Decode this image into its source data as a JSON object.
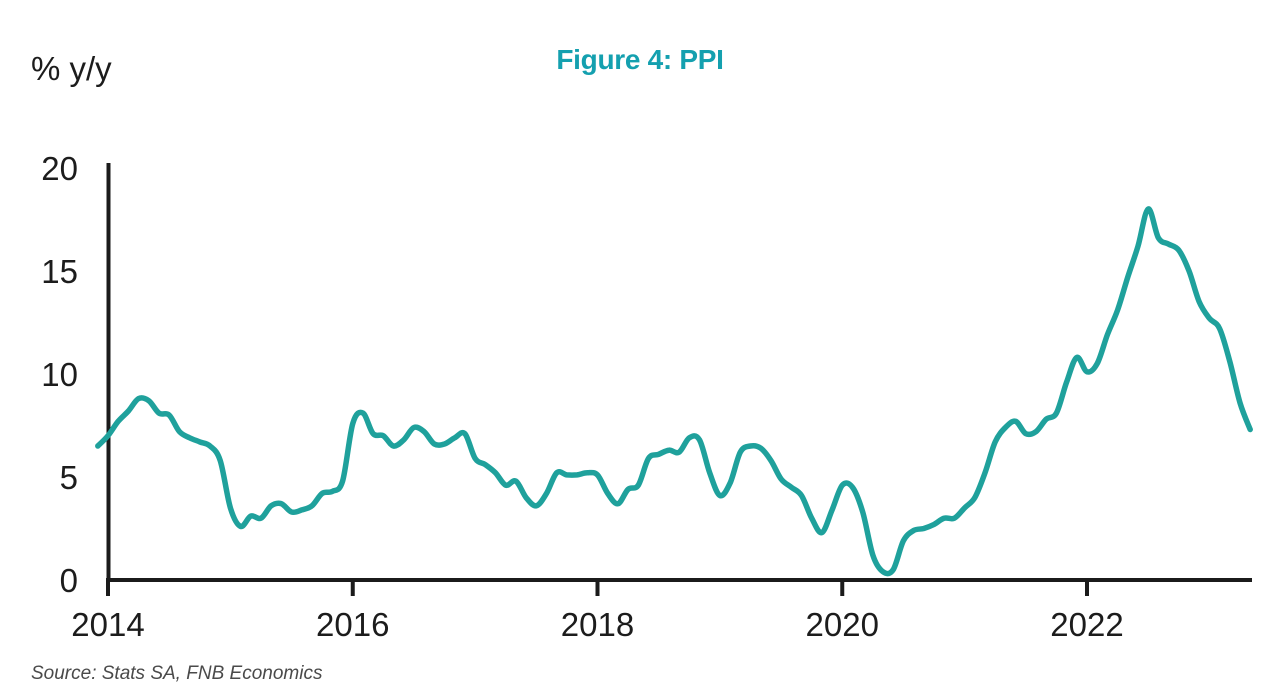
{
  "title": "Figure 4: PPI",
  "y_axis_label": "% y/y",
  "source": "Source: Stats SA, FNB Economics",
  "colors": {
    "title": "#14A0AF",
    "line": "#1FA19C",
    "axis": "#1b1b1b",
    "tick_text": "#1c1c1c",
    "source_text": "#4a4a4a",
    "background": "#ffffff"
  },
  "chart_data": {
    "type": "line",
    "title": "Figure 4: PPI",
    "xlabel": "",
    "ylabel": "% y/y",
    "grid": false,
    "legend": "none",
    "ylim": [
      0,
      20
    ],
    "y_ticks": [
      0,
      5,
      10,
      15,
      20
    ],
    "x_tick_labels": [
      "2014",
      "2016",
      "2018",
      "2020",
      "2022"
    ],
    "series": [
      {
        "name": "PPI % y/y",
        "frequency": "monthly",
        "start": "2013-12",
        "end": "2023-05",
        "values": [
          6.5,
          7.0,
          7.7,
          8.2,
          8.8,
          8.7,
          8.1,
          8.0,
          7.2,
          6.9,
          6.7,
          6.5,
          5.8,
          3.5,
          2.6,
          3.1,
          3.0,
          3.6,
          3.7,
          3.3,
          3.4,
          3.6,
          4.2,
          4.3,
          4.8,
          7.6,
          8.1,
          7.1,
          7.0,
          6.5,
          6.8,
          7.4,
          7.2,
          6.6,
          6.6,
          6.9,
          7.1,
          5.9,
          5.6,
          5.2,
          4.6,
          4.8,
          4.0,
          3.6,
          4.2,
          5.2,
          5.1,
          5.1,
          5.2,
          5.1,
          4.2,
          3.7,
          4.4,
          4.6,
          5.9,
          6.1,
          6.3,
          6.2,
          6.9,
          6.8,
          5.2,
          4.1,
          4.7,
          6.2,
          6.5,
          6.4,
          5.8,
          4.9,
          4.5,
          4.1,
          3.0,
          2.3,
          3.4,
          4.6,
          4.5,
          3.3,
          1.2,
          0.4,
          0.5,
          1.9,
          2.4,
          2.5,
          2.7,
          3.0,
          3.0,
          3.5,
          4.0,
          5.2,
          6.7,
          7.4,
          7.7,
          7.1,
          7.2,
          7.8,
          8.1,
          9.6,
          10.8,
          10.1,
          10.5,
          11.9,
          13.1,
          14.7,
          16.2,
          18.0,
          16.6,
          16.3,
          16.0,
          15.0,
          13.5,
          12.7,
          12.2,
          10.6,
          8.6,
          7.3
        ]
      }
    ]
  }
}
